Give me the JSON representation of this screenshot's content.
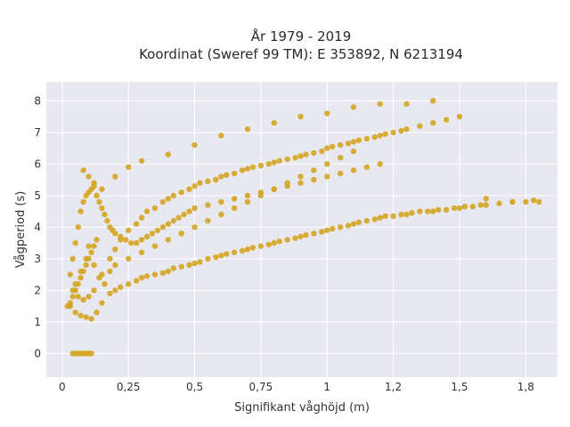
{
  "chart_data": {
    "type": "scatter",
    "title_lines": [
      "År 1979 - 2019",
      "Koordinat (Sweref 99 TM): E 353892, N 6213194"
    ],
    "xlabel": "Signifikant våghöjd (m)",
    "ylabel": "Vågperiod (s)",
    "xlim": [
      -0.06,
      1.87
    ],
    "ylim": [
      -0.75,
      8.6
    ],
    "x_ticks": [
      0,
      0.25,
      0.5,
      0.75,
      1,
      1.25,
      1.5,
      1.75
    ],
    "x_tick_labels": [
      "0",
      "0,25",
      "0,5",
      "0,75",
      "1",
      "1,2",
      "1,5",
      "1,8"
    ],
    "y_ticks": [
      0,
      1,
      2,
      3,
      4,
      5,
      6,
      7,
      8
    ],
    "y_tick_labels": [
      "0",
      "1",
      "2",
      "3",
      "4",
      "5",
      "6",
      "7",
      "8"
    ],
    "grid": true,
    "background_color": "#e8e8f0",
    "marker_color": "#d4a521",
    "series": [
      {
        "x": [
          0.04,
          0.05,
          0.06,
          0.07,
          0.08,
          0.09,
          0.1,
          0.11,
          0.03,
          0.05,
          0.07,
          0.09,
          0.11,
          0.13,
          0.15,
          0.18,
          0.2,
          0.22,
          0.25,
          0.28,
          0.3,
          0.32,
          0.35,
          0.38,
          0.4,
          0.42,
          0.45,
          0.48,
          0.5,
          0.52,
          0.55,
          0.58,
          0.6,
          0.62,
          0.65,
          0.68,
          0.7,
          0.72,
          0.75,
          0.78,
          0.8,
          0.82,
          0.85,
          0.88,
          0.9,
          0.92,
          0.95,
          0.98,
          1.0,
          1.02,
          1.05,
          1.08,
          1.1,
          1.12,
          1.15,
          1.18,
          1.2,
          1.22,
          1.25,
          1.28,
          1.3,
          1.32,
          1.35,
          1.38,
          1.4,
          1.42,
          1.45,
          1.48,
          1.5,
          1.52,
          1.55,
          1.58,
          1.6,
          1.65,
          1.7,
          1.75,
          1.78,
          1.8,
          0.04,
          0.06,
          0.08,
          0.1,
          0.12,
          0.15,
          0.18,
          0.2,
          0.22,
          0.25,
          0.28,
          0.3,
          0.32,
          0.35,
          0.38,
          0.4,
          0.42,
          0.45,
          0.48,
          0.5,
          0.52,
          0.55,
          0.58,
          0.6,
          0.62,
          0.65,
          0.68,
          0.7,
          0.72,
          0.75,
          0.78,
          0.8,
          0.82,
          0.85,
          0.88,
          0.9,
          0.92,
          0.95,
          0.98,
          1.0,
          1.02,
          1.05,
          1.08,
          1.1,
          1.12,
          1.15,
          1.18,
          1.2,
          1.22,
          1.25,
          1.28,
          1.3,
          1.35,
          1.4,
          1.45,
          0.03,
          0.04,
          0.05,
          0.06,
          0.07,
          0.08,
          0.09,
          0.1,
          0.11,
          0.12,
          0.13,
          0.14,
          0.15,
          0.16,
          0.17,
          0.18,
          0.19,
          0.2,
          0.22,
          0.24,
          0.26,
          0.28,
          0.3,
          0.32,
          0.34,
          0.36,
          0.38,
          0.4,
          0.42,
          0.44,
          0.46,
          0.48,
          0.5,
          0.55,
          0.6,
          0.65,
          0.7,
          0.75,
          0.8,
          0.85,
          0.9,
          0.95,
          1.0,
          1.05,
          1.1,
          1.15,
          1.2,
          0.05,
          0.07,
          0.09,
          0.1,
          0.12,
          0.14,
          0.16,
          0.18,
          0.2,
          0.25,
          0.3,
          0.35,
          0.4,
          0.45,
          0.5,
          0.55,
          0.6,
          0.65,
          0.7,
          0.75,
          0.8,
          0.85,
          0.9,
          0.95,
          1.0,
          1.05,
          1.1,
          0.08,
          0.1,
          0.12,
          0.15,
          0.2,
          0.25,
          0.3,
          0.4,
          0.5,
          0.6,
          0.7,
          0.8,
          0.9,
          1.0,
          1.1,
          1.2,
          1.3,
          1.4,
          1.5,
          1.6,
          1.7,
          0.02,
          0.03,
          0.04,
          0.05,
          0.06,
          0.07,
          0.08,
          0.09,
          0.1,
          0.11,
          0.12,
          0.13
        ],
        "y": [
          0,
          0,
          0,
          0,
          0,
          0,
          0,
          0,
          1.5,
          1.3,
          1.2,
          1.15,
          1.1,
          1.3,
          1.6,
          1.9,
          2.0,
          2.1,
          2.2,
          2.3,
          2.4,
          2.45,
          2.5,
          2.55,
          2.6,
          2.7,
          2.75,
          2.8,
          2.85,
          2.9,
          3.0,
          3.05,
          3.1,
          3.15,
          3.2,
          3.25,
          3.3,
          3.35,
          3.4,
          3.45,
          3.5,
          3.55,
          3.6,
          3.65,
          3.7,
          3.75,
          3.8,
          3.85,
          3.9,
          3.95,
          4.0,
          4.05,
          4.1,
          4.15,
          4.2,
          4.25,
          4.3,
          4.35,
          4.35,
          4.4,
          4.4,
          4.45,
          4.5,
          4.5,
          4.5,
          4.55,
          4.55,
          4.6,
          4.6,
          4.65,
          4.65,
          4.7,
          4.7,
          4.75,
          4.8,
          4.8,
          4.85,
          4.8,
          2.0,
          1.8,
          1.7,
          1.8,
          2.0,
          2.5,
          3.0,
          3.3,
          3.6,
          3.9,
          4.1,
          4.3,
          4.5,
          4.6,
          4.8,
          4.9,
          5.0,
          5.1,
          5.2,
          5.3,
          5.4,
          5.45,
          5.5,
          5.6,
          5.65,
          5.7,
          5.8,
          5.85,
          5.9,
          5.95,
          6.0,
          6.05,
          6.1,
          6.15,
          6.2,
          6.25,
          6.3,
          6.35,
          6.4,
          6.5,
          6.55,
          6.6,
          6.65,
          6.7,
          6.75,
          6.8,
          6.85,
          6.9,
          6.95,
          7.0,
          7.05,
          7.1,
          7.2,
          7.3,
          7.4,
          2.5,
          3.0,
          3.5,
          4.0,
          4.5,
          4.8,
          5.0,
          5.1,
          5.2,
          5.3,
          5.0,
          4.8,
          4.6,
          4.4,
          4.2,
          4.0,
          3.9,
          3.8,
          3.7,
          3.6,
          3.5,
          3.5,
          3.6,
          3.7,
          3.8,
          3.9,
          4.0,
          4.1,
          4.2,
          4.3,
          4.4,
          4.5,
          4.6,
          4.7,
          4.8,
          4.9,
          5.0,
          5.1,
          5.2,
          5.3,
          5.4,
          5.5,
          5.6,
          5.7,
          5.8,
          5.9,
          6.0,
          2.2,
          2.6,
          3.0,
          3.4,
          2.8,
          2.4,
          2.2,
          2.6,
          2.8,
          3.0,
          3.2,
          3.4,
          3.6,
          3.8,
          4.0,
          4.2,
          4.4,
          4.6,
          4.8,
          5.0,
          5.2,
          5.4,
          5.6,
          5.8,
          6.0,
          6.2,
          6.4,
          5.8,
          5.6,
          5.4,
          5.2,
          5.6,
          5.9,
          6.1,
          6.3,
          6.6,
          6.9,
          7.1,
          7.3,
          7.5,
          7.6,
          7.8,
          7.9,
          7.9,
          8.0,
          7.5,
          4.9,
          4.8,
          1.5,
          1.6,
          1.8,
          2.0,
          2.2,
          2.4,
          2.6,
          2.8,
          3.0,
          3.2,
          3.4,
          3.6
        ]
      }
    ]
  }
}
